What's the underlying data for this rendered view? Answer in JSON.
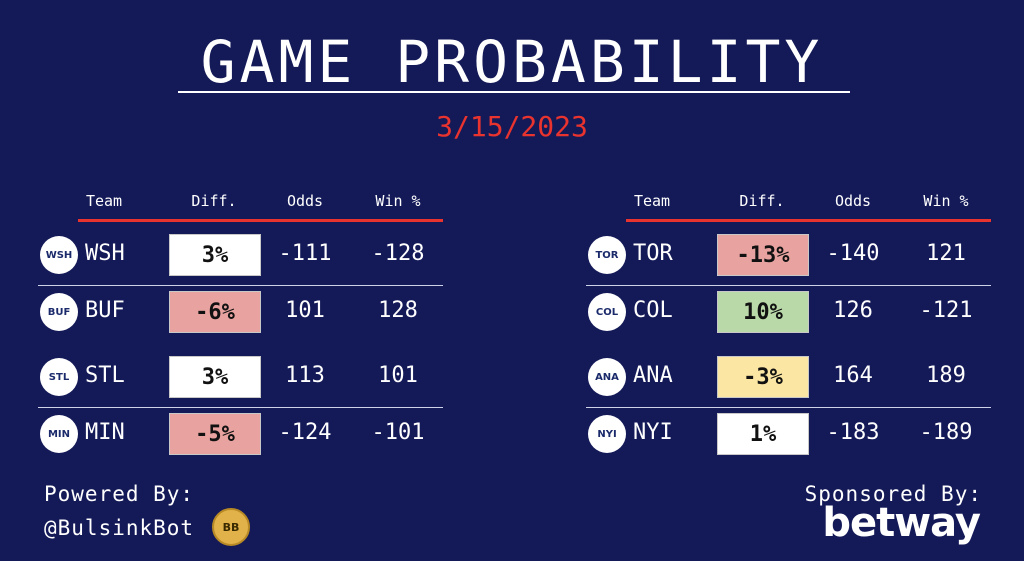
{
  "title": "GAME PROBABILITY",
  "date": "3/15/2023",
  "headers": {
    "team": "Team",
    "diff": "Diff.",
    "odds": "Odds",
    "win": "Win %"
  },
  "left": [
    {
      "abbr": "WSH",
      "logo_text": "WSH",
      "diff": "3%",
      "diff_color": "#ffffff",
      "odds": "-111",
      "win": "-128"
    },
    {
      "abbr": "BUF",
      "logo_text": "BUF",
      "diff": "-6%",
      "diff_color": "#e8a3a0",
      "odds": "101",
      "win": "128"
    },
    {
      "abbr": "STL",
      "logo_text": "STL",
      "diff": "3%",
      "diff_color": "#ffffff",
      "odds": "113",
      "win": "101"
    },
    {
      "abbr": "MIN",
      "logo_text": "MIN",
      "diff": "-5%",
      "diff_color": "#e8a3a0",
      "odds": "-124",
      "win": "-101"
    }
  ],
  "right": [
    {
      "abbr": "TOR",
      "logo_text": "TOR",
      "diff": "-13%",
      "diff_color": "#e8a3a0",
      "odds": "-140",
      "win": "121"
    },
    {
      "abbr": "COL",
      "logo_text": "COL",
      "diff": "10%",
      "diff_color": "#b9d9a8",
      "odds": "126",
      "win": "-121"
    },
    {
      "abbr": "ANA",
      "logo_text": "ANA",
      "diff": "-3%",
      "diff_color": "#fbe6a3",
      "odds": "164",
      "win": "189"
    },
    {
      "abbr": "NYI",
      "logo_text": "NYI",
      "diff": "1%",
      "diff_color": "#ffffff",
      "odds": "-183",
      "win": "-189"
    }
  ],
  "footer": {
    "powered_by": "Powered By:",
    "handle": "@BulsinkBot",
    "bb_logo_text": "BB",
    "sponsored_by": "Sponsored By:",
    "sponsor": "betway"
  },
  "colors": {
    "background": "#141a57",
    "accent": "#e8332f"
  }
}
